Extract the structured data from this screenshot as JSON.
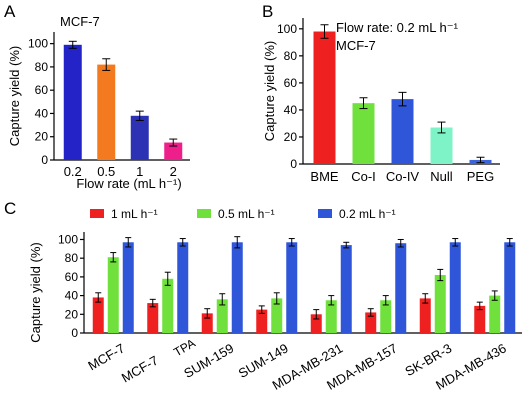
{
  "chart_data": [
    {
      "panel": "A",
      "type": "bar",
      "annotation": "MCF-7",
      "xlabel": "Flow rate (mL h⁻¹)",
      "ylabel": "Capture yield (%)",
      "ylim": [
        0,
        110
      ],
      "yticks": [
        0,
        20,
        40,
        60,
        80,
        100
      ],
      "categories": [
        "0.2",
        "0.5",
        "1",
        "2"
      ],
      "values": [
        99,
        82,
        38,
        15
      ],
      "errors": [
        3,
        5,
        4,
        3
      ],
      "colors": [
        "#2323c8",
        "#f47a20",
        "#2d32b4",
        "#ee1f8a"
      ]
    },
    {
      "panel": "B",
      "type": "bar",
      "annotations": [
        "Flow rate: 0.2 mL h⁻¹",
        "MCF-7"
      ],
      "xlabel": "",
      "ylabel": "Capture yield (%)",
      "ylim": [
        0,
        108
      ],
      "yticks": [
        0,
        20,
        40,
        60,
        80,
        100
      ],
      "categories": [
        "BME",
        "Co-I",
        "Co-IV",
        "Null",
        "PEG"
      ],
      "values": [
        98,
        45,
        48,
        27,
        3
      ],
      "errors": [
        5,
        4,
        5,
        4,
        2
      ],
      "colors": [
        "#ee2020",
        "#6fe03c",
        "#2f56d8",
        "#7ff3c8",
        "#3a64d8"
      ]
    },
    {
      "panel": "C",
      "type": "bar",
      "xlabel": "",
      "ylabel": "Capture yield (%)",
      "ylim": [
        0,
        108
      ],
      "yticks": [
        0,
        20,
        40,
        60,
        80,
        100
      ],
      "categories": [
        "MCF-7",
        "MCF-7",
        "SUM-159",
        "SUM-149",
        "MDA-MB-231",
        "MDA-MB-157",
        "SK-BR-3",
        "MDA-MB-436"
      ],
      "category_subscripts": [
        "",
        "TPA",
        "",
        "",
        "",
        "",
        "",
        ""
      ],
      "series": [
        {
          "name": "1 mL h⁻¹",
          "color": "#ee2020",
          "values": [
            38,
            32,
            21,
            25,
            20,
            22,
            37,
            29
          ],
          "errors": [
            5,
            4,
            5,
            4,
            5,
            4,
            5,
            4
          ]
        },
        {
          "name": "0.5 mL h⁻¹",
          "color": "#6fe03c",
          "values": [
            81,
            58,
            36,
            37,
            35,
            35,
            62,
            40
          ],
          "errors": [
            5,
            7,
            6,
            6,
            5,
            5,
            6,
            5
          ]
        },
        {
          "name": "0.2 mL h⁻¹",
          "color": "#2f56d8",
          "values": [
            97,
            97,
            97,
            97,
            94,
            96,
            97,
            97
          ],
          "errors": [
            5,
            4,
            6,
            4,
            3,
            4,
            4,
            4
          ]
        }
      ],
      "legend_placement": "top"
    }
  ]
}
